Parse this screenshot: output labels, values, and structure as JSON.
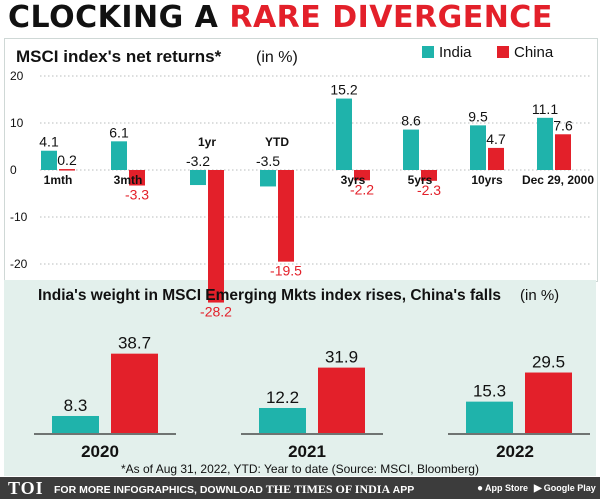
{
  "headline": {
    "part1": "CLOCKING A ",
    "part2": "RARE DIVERGENCE"
  },
  "colors": {
    "india": "#1fb3ab",
    "china": "#e3202a",
    "bottom_bg": "#e3f0ec"
  },
  "chart_data": [
    {
      "type": "bar",
      "title": "MSCI index's net returns*",
      "unit": "(in %)",
      "categories": [
        "1mth",
        "3mth",
        "1yr",
        "YTD",
        "3yrs",
        "5yrs",
        "10yrs",
        "Dec 29, 2000"
      ],
      "series": [
        {
          "name": "India",
          "values": [
            4.1,
            6.1,
            -3.2,
            -3.5,
            15.2,
            8.6,
            9.5,
            11.1
          ]
        },
        {
          "name": "China",
          "values": [
            0.2,
            -3.3,
            -28.2,
            -19.5,
            -2.2,
            -2.3,
            4.7,
            7.6
          ]
        }
      ],
      "value_labels": {
        "India": [
          "4.1",
          "6.1",
          "-3.2",
          "-3.5",
          "15.2",
          "8.6",
          "9.5",
          "11.1"
        ],
        "China": [
          "0.2",
          "-3.3",
          "-28.2",
          "-19.5",
          "-2.2",
          "-2.3",
          "4.7",
          "7.6"
        ]
      },
      "yticks": [
        "20",
        "10",
        "0",
        "-10",
        "-20"
      ],
      "ylim": [
        -30,
        20
      ],
      "legend_placement": "top-right"
    },
    {
      "type": "bar",
      "title": "India's weight in MSCI Emerging Mkts index rises, China's falls",
      "unit": "(in %)",
      "categories": [
        "2020",
        "2021",
        "2022"
      ],
      "series": [
        {
          "name": "India",
          "values": [
            8.3,
            12.2,
            15.3
          ]
        },
        {
          "name": "China",
          "values": [
            38.7,
            31.9,
            29.5
          ]
        }
      ],
      "value_labels": {
        "India": [
          "8.3",
          "12.2",
          "15.3"
        ],
        "China": [
          "38.7",
          "31.9",
          "29.5"
        ]
      },
      "ylim": [
        0,
        40
      ]
    }
  ],
  "footnote": "*As of Aug 31, 2022, YTD: Year to date (Source: MSCI, Bloomberg)",
  "footer": {
    "logo": "TOI",
    "text": "FOR MORE INFOGRAPHICS, DOWNLOAD",
    "brand": "THE TIMES OF INDIA",
    "app": "APP",
    "apple_label": "App Store",
    "google_label": "Google Play"
  }
}
